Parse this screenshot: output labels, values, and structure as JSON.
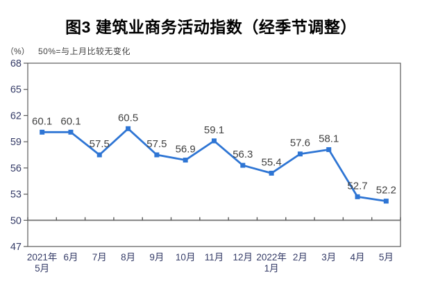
{
  "chart_data": {
    "type": "line",
    "title": "图3 建筑业商务活动指数（经季节调整）",
    "unit_label": "（%）",
    "note": "50%=与上月比较无变化",
    "categories": [
      "2021年\n5月",
      "6月",
      "7月",
      "8月",
      "9月",
      "10月",
      "11月",
      "12月",
      "2022年\n1月",
      "2月",
      "3月",
      "4月",
      "5月"
    ],
    "series": [
      {
        "name": "建筑业商务活动指数",
        "values": [
          60.1,
          60.1,
          57.5,
          60.5,
          57.5,
          56.9,
          59.1,
          56.3,
          55.4,
          57.6,
          58.1,
          52.7,
          52.2
        ]
      }
    ],
    "data_labels": [
      "60.1",
      "60.1",
      "57.5",
      "60.5",
      "57.5",
      "56.9",
      "59.1",
      "56.3",
      "55.4",
      "57.6",
      "58.1",
      "52.7",
      "52.2"
    ],
    "ylim": [
      47,
      68
    ],
    "y_ticks": [
      47,
      50,
      53,
      56,
      59,
      62,
      65,
      68
    ],
    "reference_line": 50,
    "grid": false,
    "legend": "none",
    "marker": "square",
    "colors": {
      "line": "#2e75d4",
      "marker": "#2e75d4",
      "data_label": "#404040",
      "axis_label": "#333a66",
      "frame": "#595959",
      "reference_line": "#808080",
      "title": "#000000",
      "background": "#ffffff"
    }
  }
}
